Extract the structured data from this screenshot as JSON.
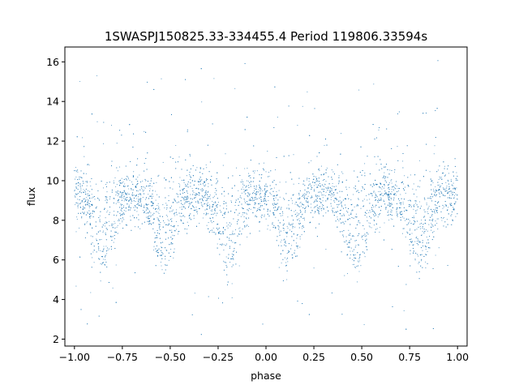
{
  "chart_data": {
    "type": "scatter",
    "title": "1SWASPJ150825.33-334455.4 Period 119806.33594s",
    "xlabel": "phase",
    "ylabel": "flux",
    "xlim": [
      -1.05,
      1.05
    ],
    "ylim": [
      1.65,
      16.75
    ],
    "xticks": [
      -1.0,
      -0.75,
      -0.5,
      -0.25,
      0.0,
      0.25,
      0.5,
      0.75,
      1.0
    ],
    "xtick_labels": [
      "−1.00",
      "−0.75",
      "−0.50",
      "−0.25",
      "0.00",
      "0.25",
      "0.50",
      "0.75",
      "1.00"
    ],
    "yticks": [
      2,
      4,
      6,
      8,
      10,
      12,
      14,
      16
    ],
    "ytick_labels": [
      "2",
      "4",
      "6",
      "8",
      "10",
      "12",
      "14",
      "16"
    ],
    "grid": false,
    "legend": "none",
    "marker_color": "#1f77b4",
    "series": [
      {
        "x_range": [
          -1.0,
          1.0
        ],
        "baseline_flux": 9.3,
        "baseline_spread": 0.75,
        "dip_phases": [
          -0.85,
          -0.53,
          -0.2,
          0.12,
          0.47,
          0.8
        ],
        "dip_minimum_flux": 5.9,
        "y_range": [
          2.2,
          16.1
        ]
      }
    ]
  }
}
